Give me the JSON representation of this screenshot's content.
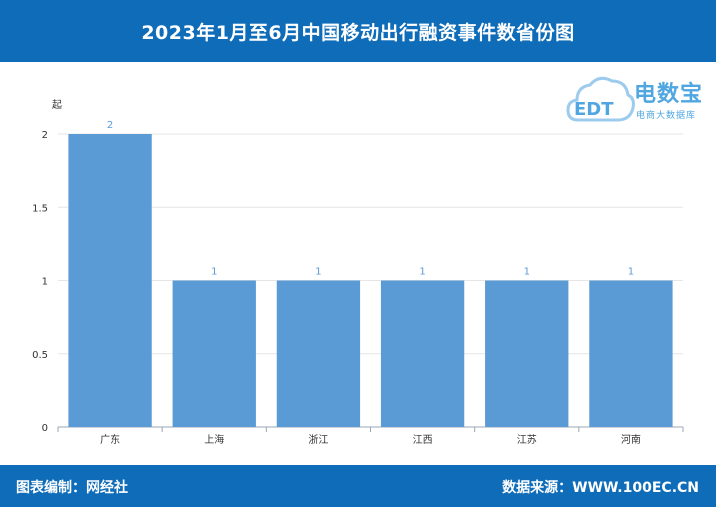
{
  "header": {
    "title": "2023年1月至6月中国移动出行融资事件数省份图"
  },
  "footer": {
    "editor": "图表编制：网经社",
    "source": "数据来源：WWW.100EC.CN"
  },
  "logo": {
    "brand": "电数宝",
    "tagline": "电商大数据库",
    "mark_text": "EDT"
  },
  "chart_data": {
    "type": "bar",
    "categories": [
      "广东",
      "上海",
      "浙江",
      "江西",
      "江苏",
      "河南"
    ],
    "values": [
      2,
      1,
      1,
      1,
      1,
      1
    ],
    "data_labels": [
      "2",
      "1",
      "1",
      "1",
      "1",
      "1"
    ],
    "ylabel": "起",
    "ylim": [
      0,
      2
    ],
    "yticks": [
      0,
      0.5,
      1,
      1.5,
      2
    ],
    "ytick_labels": [
      "0",
      "0.5",
      "1",
      "1.5",
      "2"
    ],
    "grid": true,
    "bar_color": "#5b9bd5",
    "label_color": "#5b9bd5"
  },
  "colors": {
    "brand_blue": "#0f6cb8",
    "logo_blue": "#4fa6e0"
  }
}
